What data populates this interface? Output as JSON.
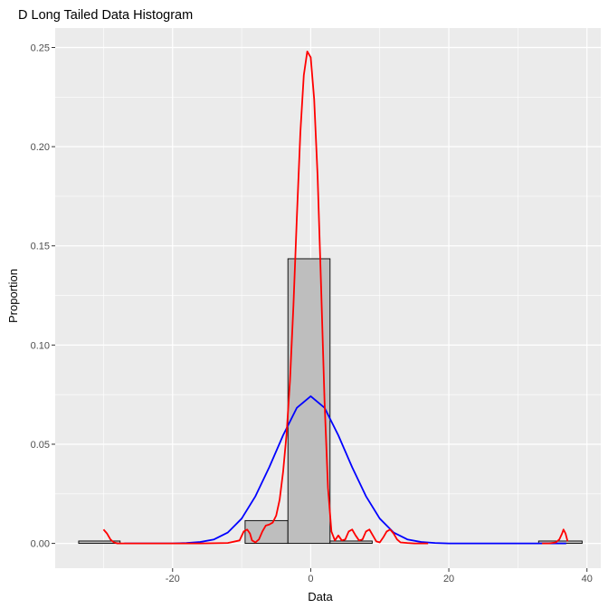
{
  "chart_data": {
    "type": "bar",
    "title": "D Long Tailed Data Histogram",
    "xlabel": "Data",
    "ylabel": "Proportion",
    "xlim": [
      -37,
      42
    ],
    "ylim": [
      -0.0125,
      0.2598
    ],
    "x_ticks": [
      -20,
      0,
      20,
      40
    ],
    "x_tick_labels": [
      "-20",
      "0",
      "20",
      "40"
    ],
    "x_minor_ticks": [
      -30,
      -10,
      10,
      30
    ],
    "y_ticks": [
      0,
      0.05,
      0.1,
      0.15,
      0.2,
      0.25
    ],
    "y_tick_labels": [
      "0.00",
      "0.05",
      "0.10",
      "0.15",
      "0.20",
      "0.25"
    ],
    "y_minor_ticks": [
      0.025,
      0.075,
      0.125,
      0.175,
      0.225
    ],
    "grid": true,
    "colors": {
      "panel_background": "#ebebeb",
      "grid": "#ffffff",
      "bar_fill": "#bebebe",
      "bar_stroke": "#000000",
      "density_line": "#ff0000",
      "normal_line": "#0000ff"
    },
    "bars": [
      {
        "x0": -33.6,
        "x1": -27.6,
        "y": 0.0012
      },
      {
        "x0": -9.5,
        "x1": -3.3,
        "y": 0.0115
      },
      {
        "x0": -3.3,
        "x1": 2.8,
        "y": 0.1435
      },
      {
        "x0": 2.8,
        "x1": 8.9,
        "y": 0.0012
      },
      {
        "x0": 33.0,
        "x1": 39.3,
        "y": 0.0012
      }
    ],
    "series": [
      {
        "kind": "density",
        "x": [
          -30.0,
          -29.5,
          -29.0,
          -28.5,
          -28.0,
          -27.5,
          -27.0,
          -25.0,
          -20.0,
          -16.0,
          -12.0,
          -10.3,
          -9.7,
          -9.2,
          -8.8,
          -8.5,
          -8.0,
          -7.5,
          -7.0,
          -6.5,
          -6.0,
          -5.5,
          -5.0,
          -4.5,
          -4.0,
          -3.5,
          -3.0,
          -2.5,
          -2.0,
          -1.5,
          -1.0,
          -0.5,
          0.0,
          0.5,
          1.0,
          1.5,
          2.0,
          2.5,
          3.0,
          3.5,
          4.0,
          4.5,
          5.0,
          5.5,
          6.0,
          6.5,
          7.0,
          7.5,
          8.0,
          8.5,
          9.0,
          9.5,
          10.0,
          10.5,
          11.0,
          11.5,
          12.0,
          12.5,
          13.0,
          14.0,
          15.0,
          17.0
        ],
        "y": [
          0.007,
          0.005,
          0.002,
          0.0005,
          0,
          0,
          0,
          0,
          0,
          0,
          0.0002,
          0.0015,
          0.006,
          0.007,
          0.005,
          0.0015,
          0.0005,
          0.002,
          0.006,
          0.009,
          0.0095,
          0.0105,
          0.014,
          0.022,
          0.036,
          0.055,
          0.082,
          0.12,
          0.165,
          0.207,
          0.236,
          0.248,
          0.245,
          0.224,
          0.185,
          0.13,
          0.072,
          0.028,
          0.006,
          0.0015,
          0.004,
          0.0015,
          0.002,
          0.006,
          0.007,
          0.004,
          0.0015,
          0.002,
          0.006,
          0.007,
          0.004,
          0.001,
          0.0005,
          0.003,
          0.006,
          0.007,
          0.005,
          0.002,
          0.0005,
          0.0002,
          0,
          0
        ]
      },
      {
        "kind": "normal",
        "x": [
          -27,
          -25,
          -22,
          -20,
          -18,
          -16,
          -14,
          -12,
          -10,
          -8,
          -6,
          -4,
          -2,
          0,
          2,
          4,
          6,
          8,
          10,
          12,
          14,
          16,
          18,
          20,
          22,
          25,
          28,
          31,
          34,
          37
        ],
        "y": [
          0,
          0,
          0,
          0,
          0.0002,
          0.0007,
          0.002,
          0.0055,
          0.0125,
          0.0238,
          0.0384,
          0.0545,
          0.0684,
          0.0742,
          0.0684,
          0.0545,
          0.0384,
          0.0238,
          0.0125,
          0.0055,
          0.002,
          0.0007,
          0.0002,
          0,
          0,
          0,
          0,
          0,
          0,
          0
        ]
      },
      {
        "kind": "density-tail",
        "x": [
          33.5,
          34.5,
          35.5,
          36.0,
          36.4,
          36.6,
          36.9,
          37.2
        ],
        "y": [
          0,
          0,
          0.0005,
          0.002,
          0.005,
          0.007,
          0.005,
          0.001
        ]
      }
    ]
  }
}
